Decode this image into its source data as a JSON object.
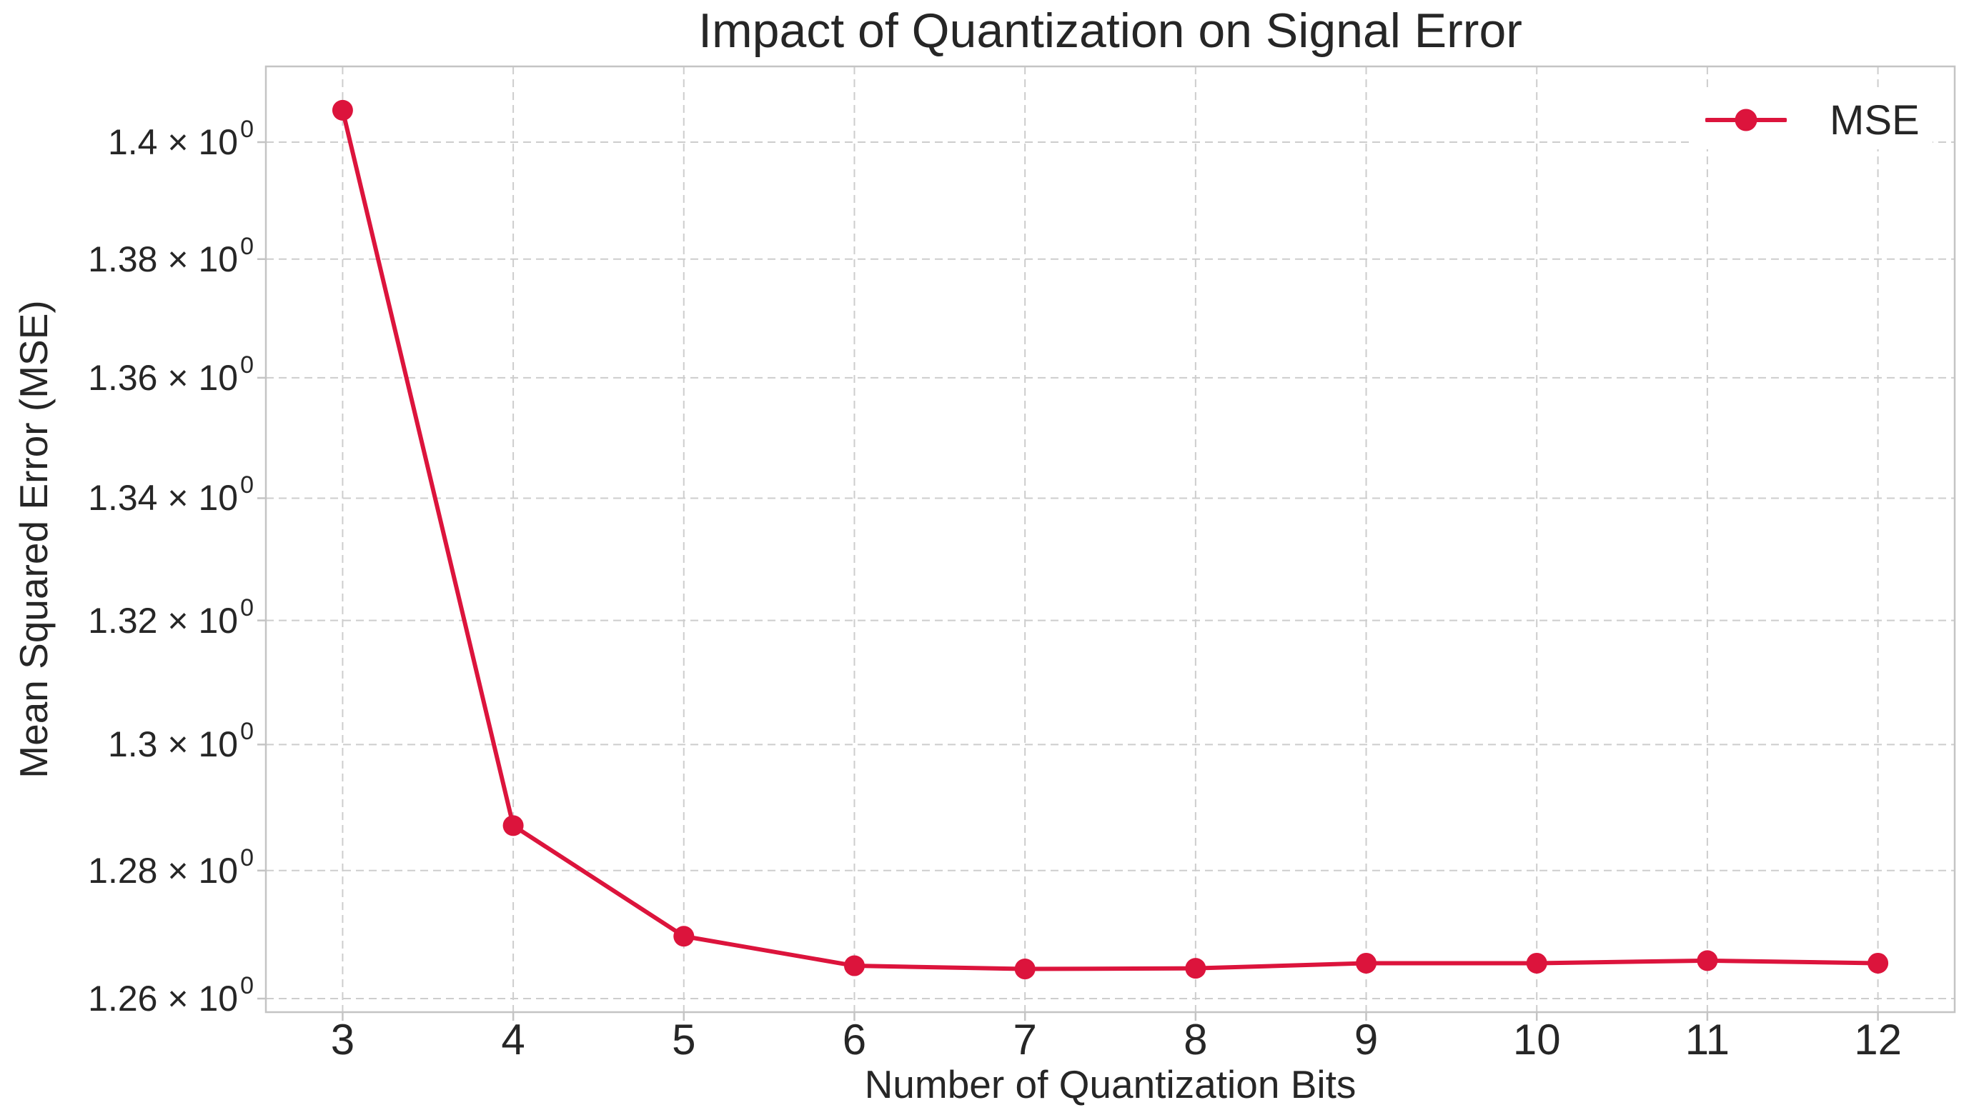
{
  "chart_data": {
    "type": "line",
    "title": "Impact of Quantization on Signal Error",
    "xlabel": "Number of Quantization Bits",
    "ylabel": "Mean Squared Error (MSE)",
    "x": [
      3,
      4,
      5,
      6,
      7,
      8,
      9,
      10,
      11,
      12
    ],
    "series": [
      {
        "name": "MSE",
        "values": [
          1.4055,
          1.2871,
          1.2697,
          1.2651,
          1.2646,
          1.2647,
          1.2655,
          1.2655,
          1.2659,
          1.2655
        ],
        "color": "#DC143C",
        "marker": "circle"
      }
    ],
    "y_scale": "log",
    "xlim": [
      2.55,
      12.45
    ],
    "ylim": [
      1.2579,
      1.4131
    ],
    "x_ticks": [
      {
        "value": 3,
        "label": "3"
      },
      {
        "value": 4,
        "label": "4"
      },
      {
        "value": 5,
        "label": "5"
      },
      {
        "value": 6,
        "label": "6"
      },
      {
        "value": 7,
        "label": "7"
      },
      {
        "value": 8,
        "label": "8"
      },
      {
        "value": 9,
        "label": "9"
      },
      {
        "value": 10,
        "label": "10"
      },
      {
        "value": 11,
        "label": "11"
      },
      {
        "value": 12,
        "label": "12"
      }
    ],
    "y_ticks": [
      {
        "value": 1.26,
        "mantissa": "1.26",
        "base": " × 10",
        "exponent": "0"
      },
      {
        "value": 1.28,
        "mantissa": "1.28",
        "base": " × 10",
        "exponent": "0"
      },
      {
        "value": 1.3,
        "mantissa": "1.3",
        "base": " × 10",
        "exponent": "0"
      },
      {
        "value": 1.32,
        "mantissa": "1.32",
        "base": " × 10",
        "exponent": "0"
      },
      {
        "value": 1.34,
        "mantissa": "1.34",
        "base": " × 10",
        "exponent": "0"
      },
      {
        "value": 1.36,
        "mantissa": "1.36",
        "base": " × 10",
        "exponent": "0"
      },
      {
        "value": 1.38,
        "mantissa": "1.38",
        "base": " × 10",
        "exponent": "0"
      },
      {
        "value": 1.4,
        "mantissa": "1.4",
        "base": " × 10",
        "exponent": "0"
      }
    ],
    "grid": {
      "on": true,
      "style": "dashed",
      "color": "#cdcdcd"
    },
    "legend": {
      "position": "upper right",
      "entries": [
        {
          "label": "MSE",
          "color": "#DC143C",
          "marker": "circle"
        }
      ]
    }
  },
  "colors": {
    "line": "#DC143C",
    "text": "#262626",
    "spine": "#c4c4c4",
    "grid": "#cdcdcd",
    "background": "#ffffff"
  }
}
